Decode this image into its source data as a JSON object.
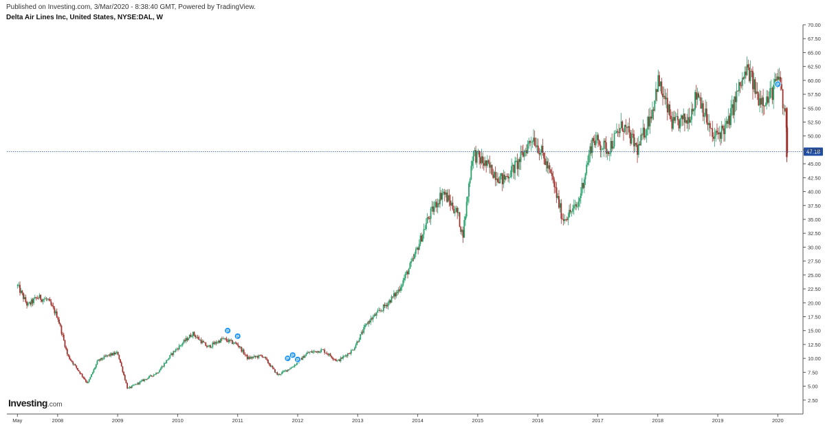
{
  "header": {
    "published": "Published on Investing.com, 3/Mar/2020 - 8:38:40 GMT, Powered by TradingView.",
    "title": "Delta Air Lines Inc, United States, NYSE:DAL, W"
  },
  "branding": {
    "logo_text": "Investing",
    "logo_suffix": ".com"
  },
  "chart_data": {
    "type": "candlestick",
    "interval": "W",
    "ylim": [
      0,
      70
    ],
    "y_ticks": [
      "2.50",
      "5.00",
      "7.50",
      "10.00",
      "12.50",
      "15.00",
      "17.50",
      "20.00",
      "22.50",
      "25.00",
      "27.50",
      "30.00",
      "32.50",
      "35.00",
      "37.50",
      "40.00",
      "42.50",
      "45.00",
      "47.50",
      "50.00",
      "52.50",
      "55.00",
      "57.50",
      "60.00",
      "62.50",
      "65.00",
      "67.50",
      "70.00"
    ],
    "x_ticks": [
      "May",
      "2008",
      "2009",
      "2010",
      "2011",
      "2012",
      "2013",
      "2014",
      "2015",
      "2016",
      "2017",
      "2018",
      "2019",
      "2020"
    ],
    "last_price": 47.18,
    "last_price_label": "47.18",
    "colors": {
      "up": "#26a069",
      "down": "#a0322d",
      "last_price_line": "#1f4ea3",
      "event_marker": "#2196f3"
    },
    "price_path": [
      [
        "2007-05",
        23.0
      ],
      [
        "2007-07",
        19.5
      ],
      [
        "2007-09",
        21.0
      ],
      [
        "2007-11",
        20.5
      ],
      [
        "2008-01",
        17.5
      ],
      [
        "2008-03",
        10.5
      ],
      [
        "2008-05",
        8.0
      ],
      [
        "2008-07",
        5.5
      ],
      [
        "2008-09",
        9.5
      ],
      [
        "2008-11",
        10.5
      ],
      [
        "2009-01",
        11.0
      ],
      [
        "2009-03",
        4.5
      ],
      [
        "2009-06",
        6.0
      ],
      [
        "2009-09",
        7.5
      ],
      [
        "2009-12",
        11.0
      ],
      [
        "2010-04",
        14.5
      ],
      [
        "2010-07",
        12.0
      ],
      [
        "2010-10",
        13.5
      ],
      [
        "2011-01",
        12.5
      ],
      [
        "2011-03",
        10.0
      ],
      [
        "2011-06",
        10.5
      ],
      [
        "2011-09",
        7.0
      ],
      [
        "2011-12",
        8.5
      ],
      [
        "2012-03",
        11.0
      ],
      [
        "2012-06",
        11.5
      ],
      [
        "2012-09",
        9.5
      ],
      [
        "2012-12",
        11.5
      ],
      [
        "2013-03",
        16.5
      ],
      [
        "2013-06",
        19.0
      ],
      [
        "2013-09",
        22.0
      ],
      [
        "2013-12",
        27.5
      ],
      [
        "2014-03",
        35.0
      ],
      [
        "2014-06",
        40.0
      ],
      [
        "2014-09",
        36.0
      ],
      [
        "2014-10",
        32.0
      ],
      [
        "2014-12",
        47.0
      ],
      [
        "2015-03",
        44.5
      ],
      [
        "2015-06",
        42.0
      ],
      [
        "2015-09",
        45.0
      ],
      [
        "2015-12",
        50.0
      ],
      [
        "2016-02",
        46.5
      ],
      [
        "2016-04",
        42.0
      ],
      [
        "2016-06",
        35.0
      ],
      [
        "2016-09",
        37.5
      ],
      [
        "2016-12",
        49.5
      ],
      [
        "2017-03",
        47.5
      ],
      [
        "2017-06",
        52.0
      ],
      [
        "2017-09",
        47.5
      ],
      [
        "2017-12",
        55.0
      ],
      [
        "2018-01",
        60.0
      ],
      [
        "2018-04",
        52.0
      ],
      [
        "2018-07",
        53.0
      ],
      [
        "2018-09",
        58.0
      ],
      [
        "2018-12",
        49.5
      ],
      [
        "2019-03",
        52.0
      ],
      [
        "2019-05",
        58.0
      ],
      [
        "2019-07",
        62.0
      ],
      [
        "2019-09",
        57.0
      ],
      [
        "2019-11",
        56.5
      ],
      [
        "2020-01",
        60.0
      ],
      [
        "2020-02",
        58.5
      ],
      [
        "2020-02-15",
        55.0
      ],
      [
        "2020-03",
        46.5
      ]
    ],
    "event_markers": [
      {
        "date": "2010-11",
        "price": 15.0,
        "label": "P"
      },
      {
        "date": "2011-01",
        "price": 14.0,
        "label": "P"
      },
      {
        "date": "2011-11",
        "price": 10.0,
        "label": "P"
      },
      {
        "date": "2011-12",
        "price": 10.6,
        "label": "P"
      },
      {
        "date": "2012-01",
        "price": 9.8,
        "label": "P"
      },
      {
        "date": "2020-01",
        "price": 59.3,
        "label": "P"
      }
    ]
  }
}
